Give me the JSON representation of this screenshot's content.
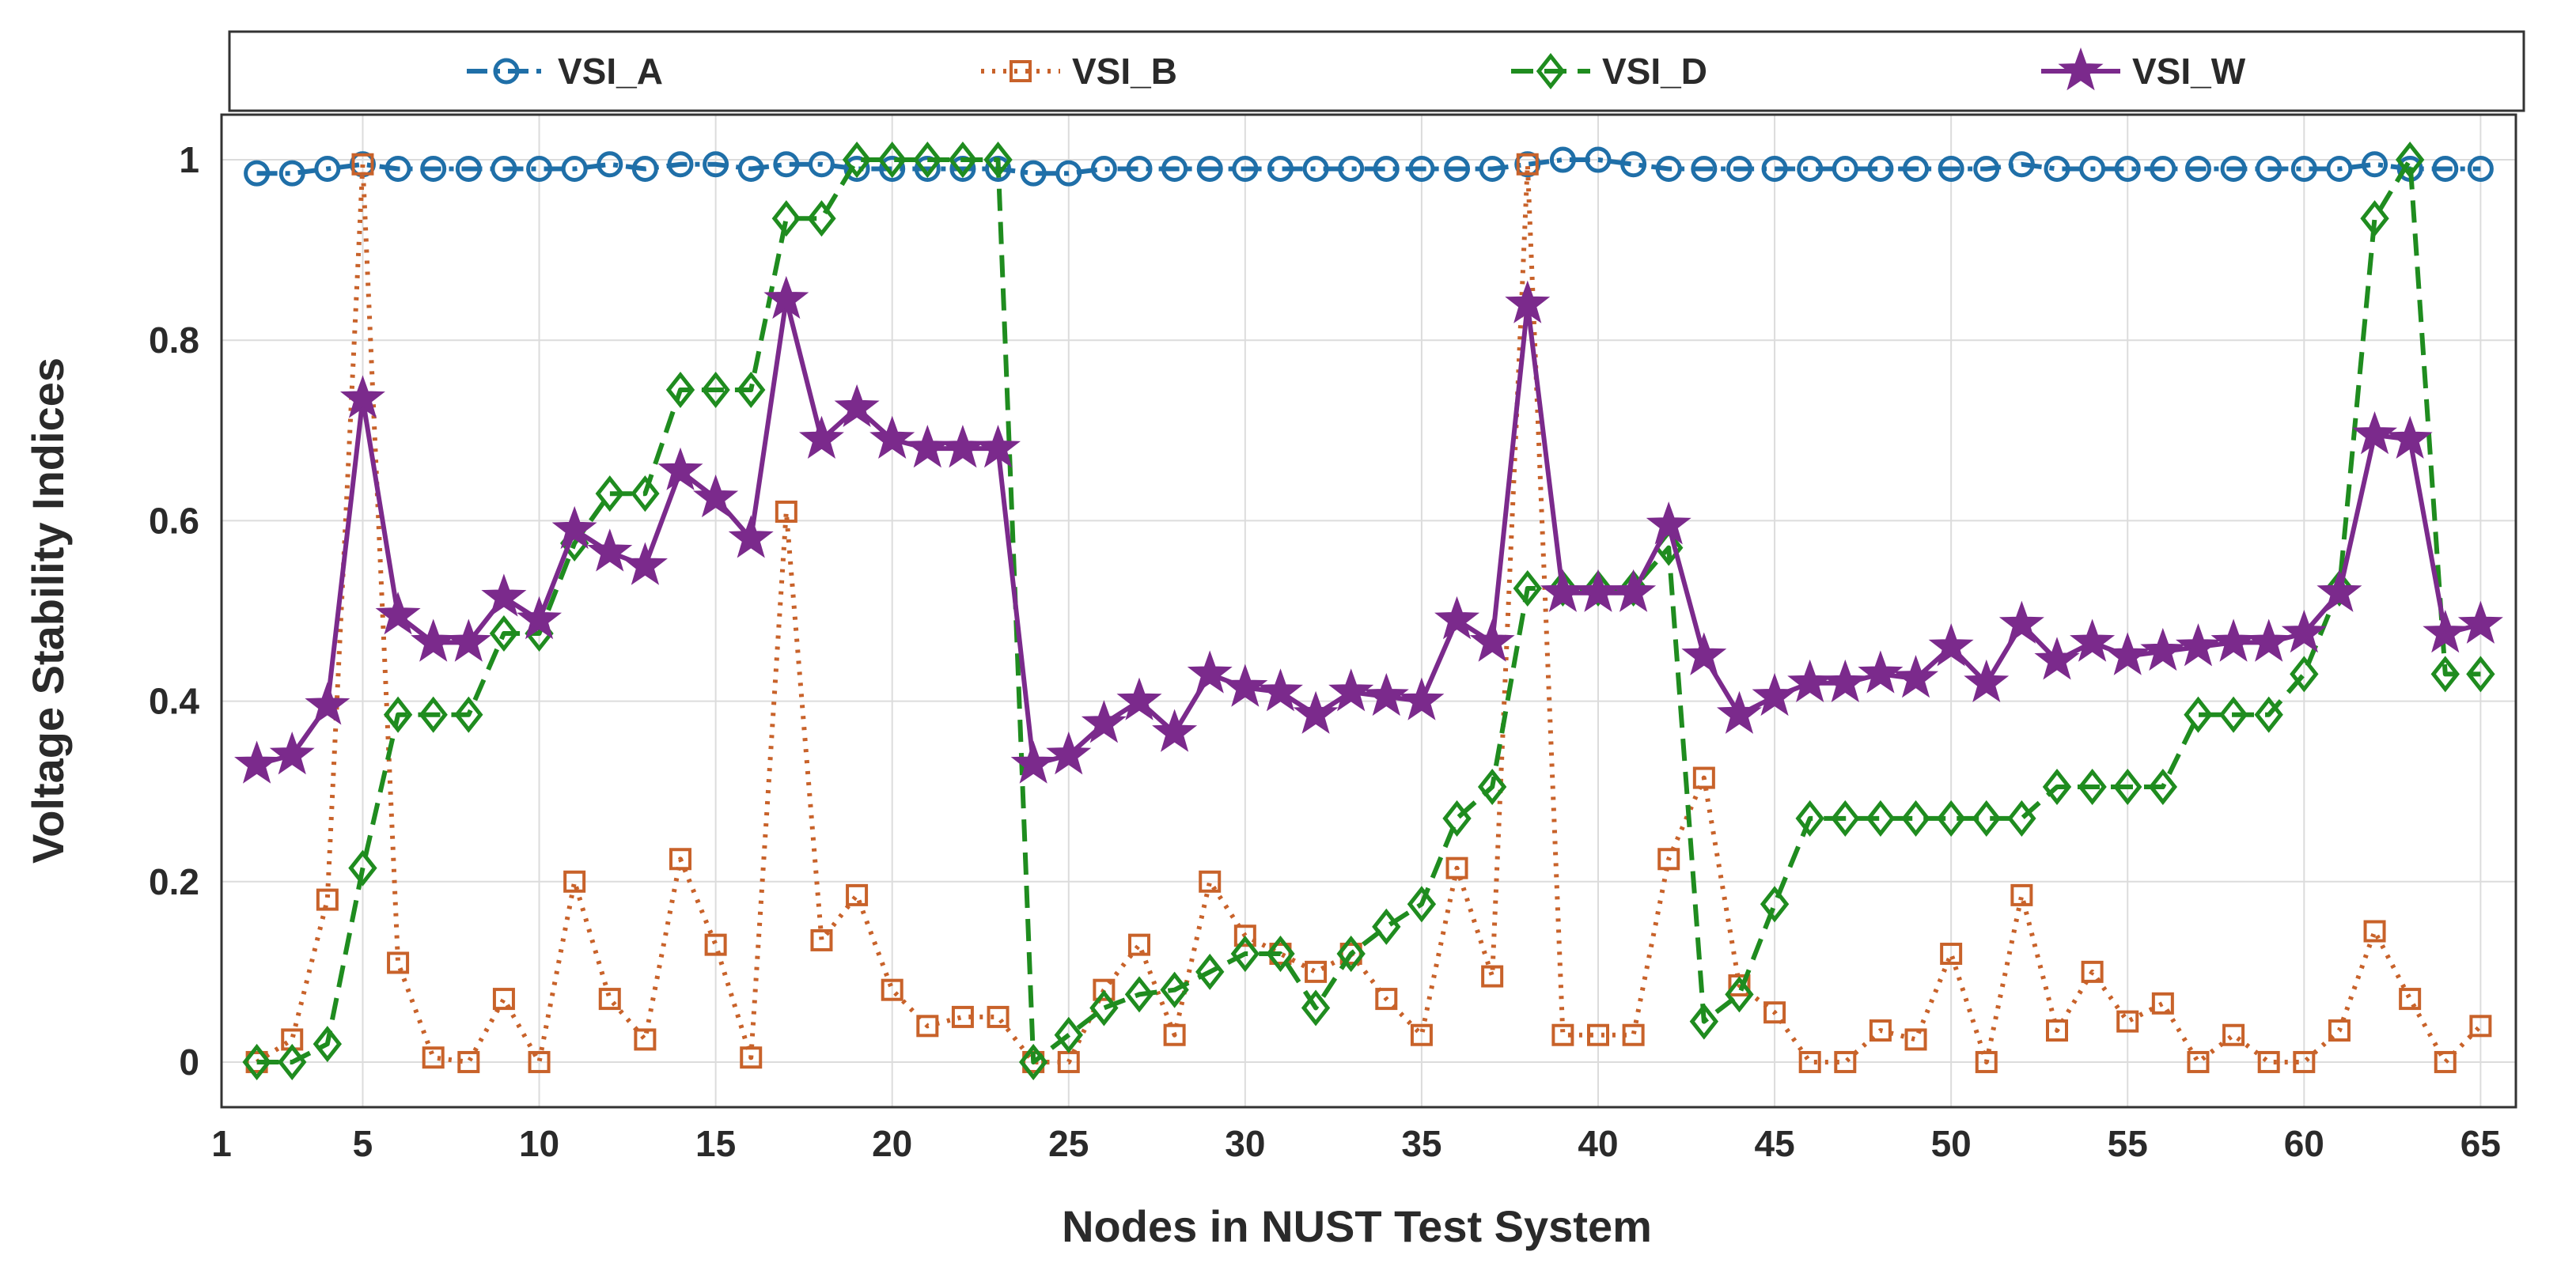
{
  "chart_data": {
    "type": "line",
    "title": "",
    "xlabel": "Nodes in NUST Test System",
    "ylabel": "Voltage Stability Indices",
    "xlim": [
      1,
      66
    ],
    "ylim": [
      -0.05,
      1.05
    ],
    "xticks": [
      1,
      5,
      10,
      15,
      20,
      25,
      30,
      35,
      40,
      45,
      50,
      55,
      60,
      65
    ],
    "yticks": [
      0,
      0.2,
      0.4,
      0.6,
      0.8,
      1
    ],
    "grid": true,
    "legend_position": "top",
    "x": [
      2,
      3,
      4,
      5,
      6,
      7,
      8,
      9,
      10,
      11,
      12,
      13,
      14,
      15,
      16,
      17,
      18,
      19,
      20,
      21,
      22,
      23,
      24,
      25,
      26,
      27,
      28,
      29,
      30,
      31,
      32,
      33,
      34,
      35,
      36,
      37,
      38,
      39,
      40,
      41,
      42,
      43,
      44,
      45,
      46,
      47,
      48,
      49,
      50,
      51,
      52,
      53,
      54,
      55,
      56,
      57,
      58,
      59,
      60,
      61,
      62,
      63,
      64,
      65
    ],
    "series": [
      {
        "name": "VSI_A",
        "color": "#1f6fa8",
        "marker": "circle",
        "dash": "dashdot",
        "values": [
          0.985,
          0.985,
          0.99,
          0.995,
          0.99,
          0.99,
          0.99,
          0.99,
          0.99,
          0.99,
          0.995,
          0.99,
          0.995,
          0.995,
          0.99,
          0.995,
          0.995,
          0.99,
          0.99,
          0.99,
          0.99,
          0.99,
          0.985,
          0.985,
          0.99,
          0.99,
          0.99,
          0.99,
          0.99,
          0.99,
          0.99,
          0.99,
          0.99,
          0.99,
          0.99,
          0.99,
          0.995,
          1.0,
          1.0,
          0.995,
          0.99,
          0.99,
          0.99,
          0.99,
          0.99,
          0.99,
          0.99,
          0.99,
          0.99,
          0.99,
          0.995,
          0.99,
          0.99,
          0.99,
          0.99,
          0.99,
          0.99,
          0.99,
          0.99,
          0.99,
          0.995,
          0.99,
          0.99,
          0.99
        ]
      },
      {
        "name": "VSI_B",
        "color": "#c8622a",
        "marker": "square",
        "dash": "dotted",
        "values": [
          0.0,
          0.025,
          0.18,
          0.995,
          0.11,
          0.005,
          0.0,
          0.07,
          0.0,
          0.2,
          0.07,
          0.025,
          0.225,
          0.13,
          0.005,
          0.61,
          0.135,
          0.185,
          0.08,
          0.04,
          0.05,
          0.05,
          0.0,
          0.0,
          0.08,
          0.13,
          0.03,
          0.2,
          0.14,
          0.12,
          0.1,
          0.12,
          0.07,
          0.03,
          0.215,
          0.095,
          0.995,
          0.03,
          0.03,
          0.03,
          0.225,
          0.315,
          0.085,
          0.055,
          0.0,
          0.0,
          0.035,
          0.025,
          0.12,
          0.0,
          0.185,
          0.035,
          0.1,
          0.045,
          0.065,
          0.0,
          0.03,
          0.0,
          0.0,
          0.035,
          0.145,
          0.07,
          0.0,
          0.04
        ]
      },
      {
        "name": "VSI_D",
        "color": "#1f8c1f",
        "marker": "diamond",
        "dash": "dashed",
        "values": [
          0.0,
          0.0,
          0.02,
          0.215,
          0.385,
          0.385,
          0.385,
          0.475,
          0.475,
          0.575,
          0.63,
          0.63,
          0.745,
          0.745,
          0.745,
          0.935,
          0.935,
          1.0,
          1.0,
          1.0,
          1.0,
          1.0,
          0.0,
          0.03,
          0.06,
          0.075,
          0.08,
          0.1,
          0.12,
          0.12,
          0.06,
          0.12,
          0.15,
          0.175,
          0.27,
          0.305,
          0.525,
          0.525,
          0.525,
          0.525,
          0.57,
          0.045,
          0.075,
          0.175,
          0.27,
          0.27,
          0.27,
          0.27,
          0.27,
          0.27,
          0.27,
          0.305,
          0.305,
          0.305,
          0.305,
          0.385,
          0.385,
          0.385,
          0.43,
          0.525,
          0.935,
          1.0,
          0.43,
          0.43
        ]
      },
      {
        "name": "VSI_W",
        "color": "#7b2a8c",
        "marker": "star",
        "dash": "solid",
        "values": [
          0.33,
          0.34,
          0.395,
          0.735,
          0.495,
          0.465,
          0.465,
          0.515,
          0.49,
          0.59,
          0.565,
          0.55,
          0.655,
          0.625,
          0.58,
          0.845,
          0.69,
          0.725,
          0.69,
          0.68,
          0.68,
          0.68,
          0.33,
          0.34,
          0.375,
          0.4,
          0.365,
          0.43,
          0.415,
          0.41,
          0.385,
          0.41,
          0.405,
          0.4,
          0.49,
          0.465,
          0.84,
          0.52,
          0.52,
          0.52,
          0.595,
          0.45,
          0.385,
          0.405,
          0.42,
          0.42,
          0.43,
          0.425,
          0.46,
          0.42,
          0.485,
          0.445,
          0.465,
          0.45,
          0.455,
          0.46,
          0.465,
          0.465,
          0.475,
          0.52,
          0.695,
          0.69,
          0.475,
          0.485
        ]
      }
    ]
  }
}
